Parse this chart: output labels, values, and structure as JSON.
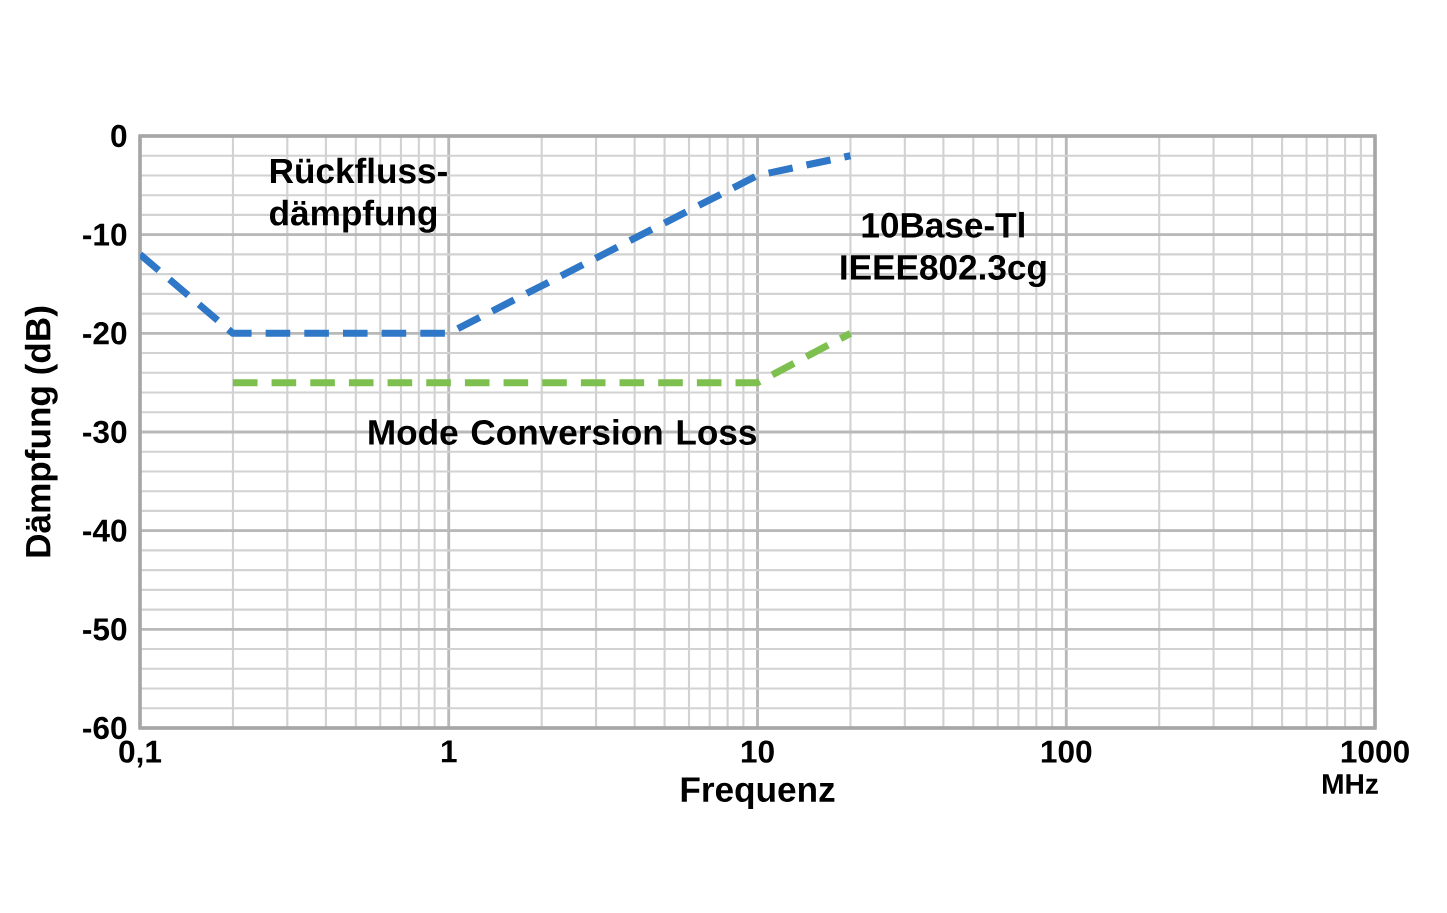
{
  "chart_data": {
    "type": "line",
    "title": "10Base-Tl IEEE802.3cg",
    "xlabel": "Frequenz",
    "ylabel": "Dämpfung (dB)",
    "annotations": [
      "MHz"
    ],
    "log": "x",
    "grid": true,
    "line_style": "dashed",
    "marker": "none",
    "legend": false,
    "xlim": [
      0.1,
      1000
    ],
    "xticks": [
      {
        "value": 0.1,
        "label": "0,1"
      },
      1,
      10,
      100,
      1000
    ],
    "ylim": [
      -60,
      0
    ],
    "yticks": [
      -60,
      -50,
      -40,
      -30,
      -20,
      -10,
      0
    ],
    "series": [
      {
        "name": "Rückfluss-dämpfung",
        "color": "#2f78c8",
        "x": [
          0.1,
          0.2,
          1,
          10,
          20
        ],
        "values": [
          -12,
          -20,
          -20,
          -4,
          -2
        ]
      },
      {
        "name": "Mode Conversion Loss",
        "color": "#7dc050",
        "x": [
          0.2,
          10,
          20
        ],
        "values": [
          -25,
          -25,
          -20
        ]
      }
    ]
  }
}
